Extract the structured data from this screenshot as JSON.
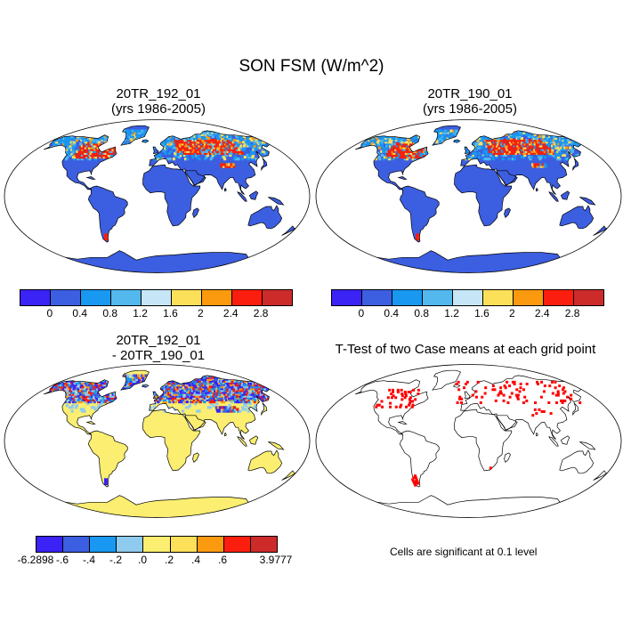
{
  "figure": {
    "title": "SON FSM (W/m^2)"
  },
  "panels": [
    {
      "id": "p1",
      "title_line1": "20TR_192_01",
      "title_line2": "(yrs 1986-2005)"
    },
    {
      "id": "p2",
      "title_line1": "20TR_190_01",
      "title_line2": "(yrs 1986-2005)"
    },
    {
      "id": "p3",
      "title_line1": "20TR_192_01",
      "title_line2": "- 20TR_190_01"
    },
    {
      "id": "p4",
      "title_line1": "T-Test of two Case means at each grid point",
      "title_line2": ""
    }
  ],
  "colorbar_abs": {
    "colors": [
      "#3b22f5",
      "#3c5ee0",
      "#1898f0",
      "#52b8ee",
      "#c6e6f7",
      "#fde05a",
      "#fb9a0e",
      "#fb1e0e",
      "#cd2a2a"
    ],
    "ticks": [
      "0",
      "0.4",
      "0.8",
      "1.2",
      "1.6",
      "2",
      "2.4",
      "2.8"
    ]
  },
  "colorbar_diff": {
    "colors": [
      "#3b22f5",
      "#3c5ee0",
      "#1898f0",
      "#8fcbee",
      "#fbee70",
      "#fde05a",
      "#fb9a0e",
      "#fb1e0e",
      "#cd2a2a"
    ],
    "ticks": [
      "-6.2898",
      "-.6",
      "-.4",
      "-.2",
      ".0",
      ".2",
      ".4",
      ".6",
      "3.9777"
    ]
  },
  "significance_note": "Cells are significant at 0.1 level",
  "colors": {
    "ocean": "#ffffff",
    "land_low": "#3c5ee0",
    "land_diff": "#fbee70",
    "significant": "#ff0000"
  }
}
